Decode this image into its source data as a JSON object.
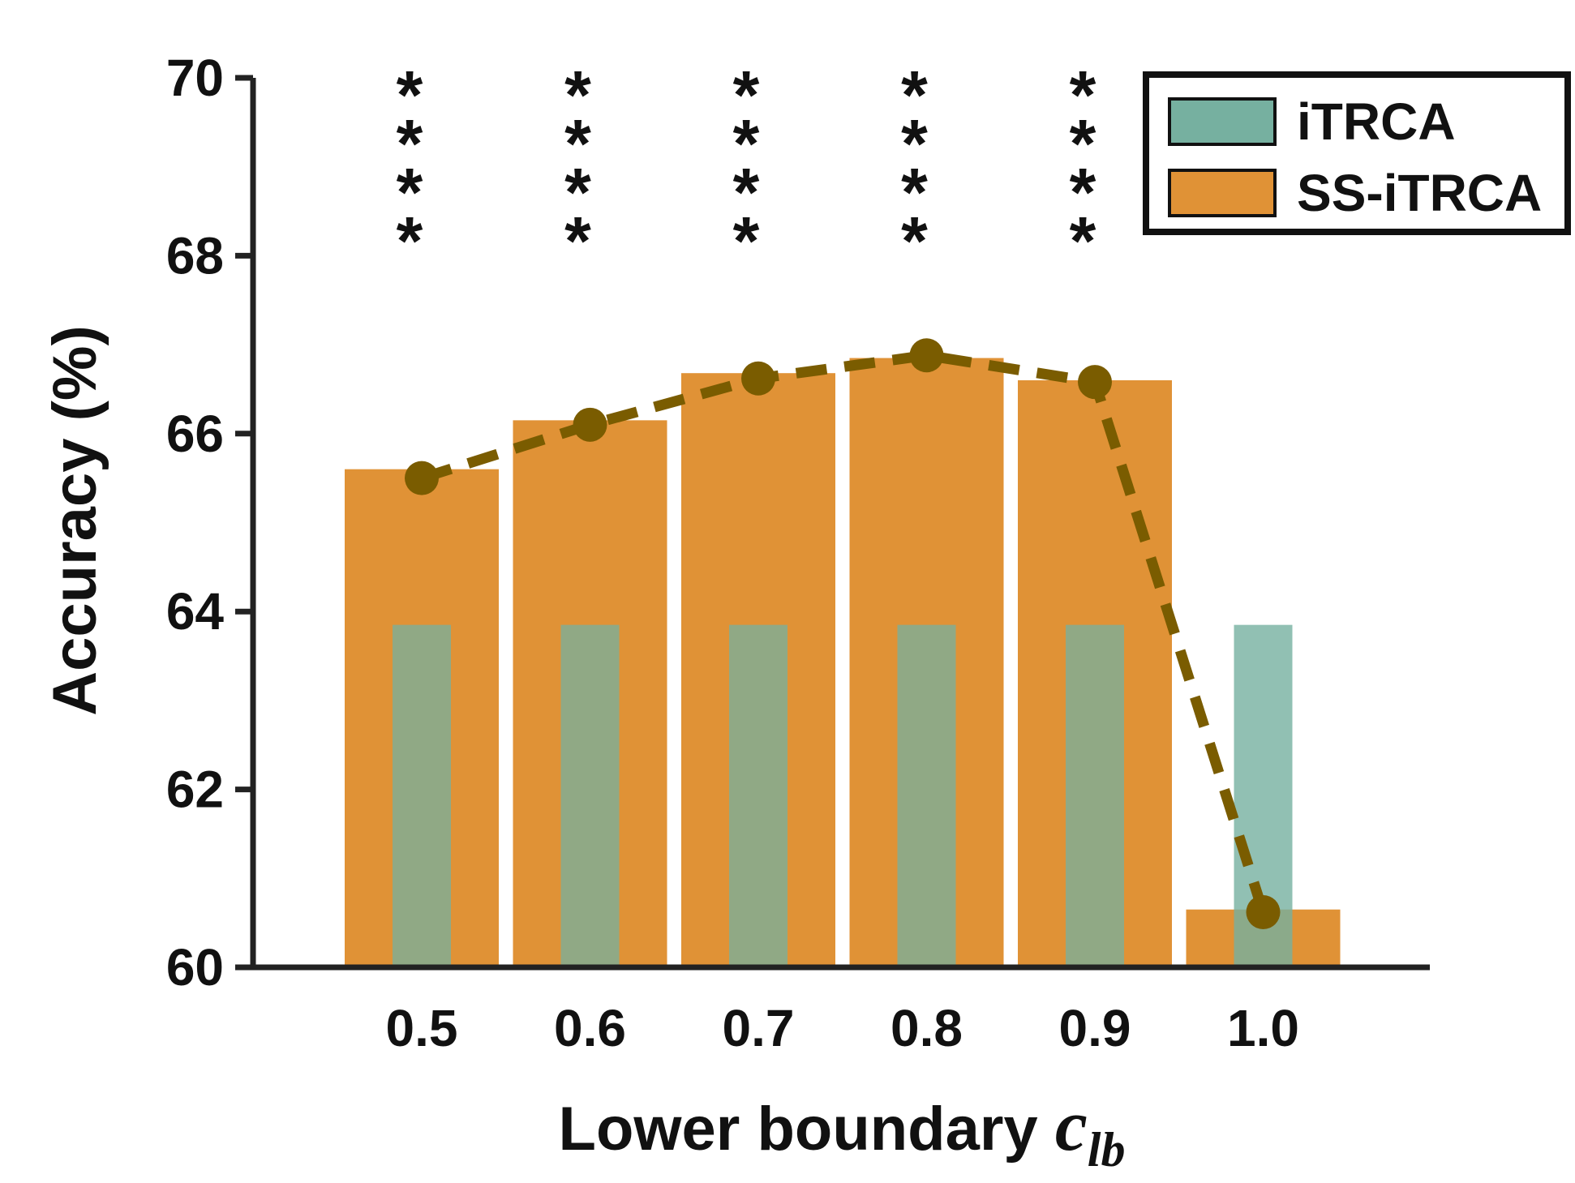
{
  "chart_data": {
    "type": "bar",
    "title": "",
    "xlabel": "Lower boundary ",
    "xlabel_symbol": "c",
    "xlabel_subscript": "lb",
    "ylabel": "Accuracy (%)",
    "ylim": [
      60,
      70
    ],
    "yticks": [
      "60",
      "62",
      "64",
      "66",
      "68",
      "70"
    ],
    "categories": [
      "0.5",
      "0.6",
      "0.7",
      "0.8",
      "0.9",
      "1.0"
    ],
    "series": [
      {
        "name": "iTRCA",
        "type": "bar",
        "color": "#76b0a0",
        "values": [
          63.85,
          63.85,
          63.85,
          63.85,
          63.85,
          63.85
        ]
      },
      {
        "name": "SS-iTRCA",
        "type": "bar",
        "color": "#e09236",
        "values": [
          65.6,
          66.15,
          66.68,
          66.85,
          66.6,
          60.65
        ]
      },
      {
        "type": "line",
        "style": "dashed",
        "marker": "circle",
        "color": "#7a5c00",
        "values": [
          65.5,
          66.1,
          66.62,
          66.88,
          66.58,
          60.62
        ]
      }
    ],
    "significance": [
      "****",
      "****",
      "****",
      "****",
      "****",
      ""
    ],
    "legend": {
      "position": "top-right",
      "entries": [
        "iTRCA",
        "SS-iTRCA"
      ]
    },
    "grid": false
  }
}
